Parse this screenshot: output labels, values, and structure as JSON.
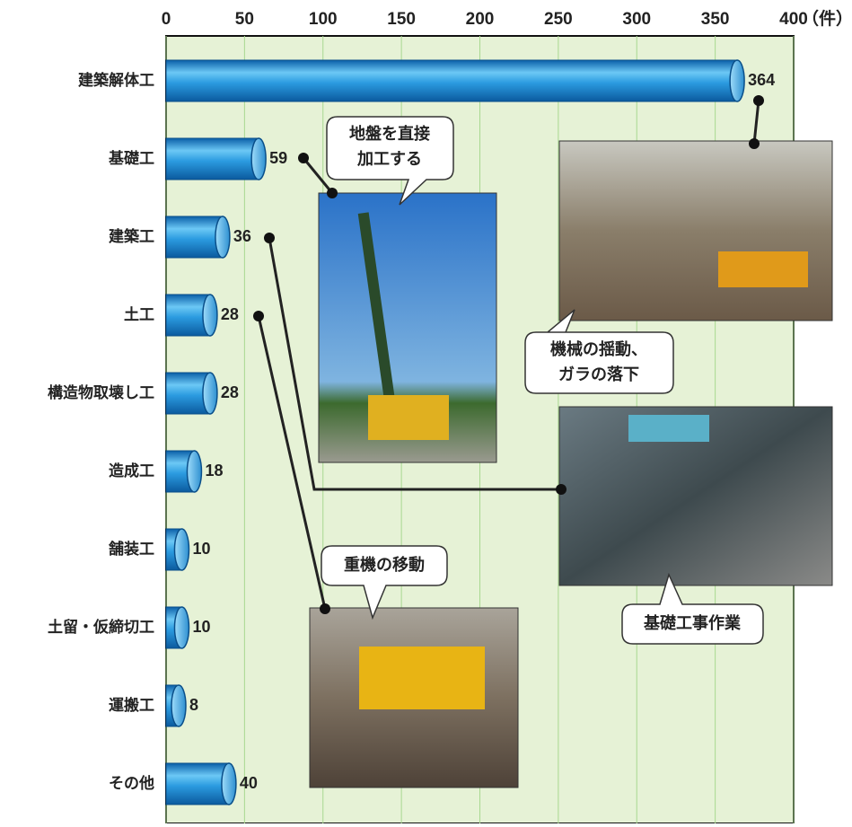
{
  "chart_data": {
    "type": "barh",
    "xlabel": "（件）",
    "categories": [
      "建築解体工",
      "基礎工",
      "建築工",
      "土工",
      "構造物取壊し工",
      "造成工",
      "舗装工",
      "土留・仮締切工",
      "運搬工",
      "その他"
    ],
    "values": [
      364,
      59,
      36,
      28,
      28,
      18,
      10,
      10,
      8,
      40
    ],
    "color": "#1e8fd8",
    "xlim": [
      0,
      400
    ],
    "xticks": [
      0,
      50,
      100,
      150,
      200,
      250,
      300,
      350,
      400
    ],
    "grid": true,
    "annotations": [
      {
        "lines": [
          "地盤を直接",
          "加工する"
        ]
      },
      {
        "lines": [
          "機械の揺動、",
          "ガラの落下"
        ]
      },
      {
        "lines": [
          "重機の移動"
        ]
      },
      {
        "lines": [
          "基礎工事作業"
        ]
      }
    ]
  }
}
